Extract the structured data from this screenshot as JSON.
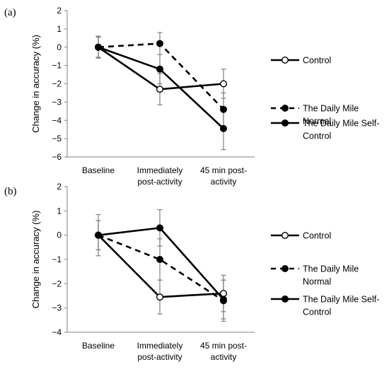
{
  "chart_data": [
    {
      "type": "line",
      "panel_label": "(a)",
      "categories": [
        "Baseline",
        "Immediately post-activity",
        "45 min post-activity"
      ],
      "category_lines": [
        [
          "Baseline"
        ],
        [
          "Immediately",
          "post-activity"
        ],
        [
          "45 min post-",
          "activity"
        ]
      ],
      "ylabel": "Change in accuracy (%)",
      "ylim": [
        -6,
        2
      ],
      "yticks": [
        2,
        1,
        0,
        -1,
        -2,
        -3,
        -4,
        -5,
        -6
      ],
      "series": [
        {
          "name": "Control",
          "values": [
            0,
            -2.3,
            -2.0
          ],
          "errors": [
            0.6,
            0.85,
            0.8
          ],
          "marker": "open",
          "dash": "solid"
        },
        {
          "name": "The Daily Mile Normal",
          "values": [
            0,
            0.2,
            -3.4
          ],
          "errors": [
            0.55,
            0.6,
            0.9
          ],
          "marker": "filled",
          "dash": "dashed"
        },
        {
          "name": "The Daily Mile Self-Control",
          "values": [
            0,
            -1.2,
            -4.45
          ],
          "errors": [
            0.6,
            0.8,
            1.15
          ],
          "marker": "filled",
          "dash": "solid"
        }
      ]
    },
    {
      "type": "line",
      "panel_label": "(b)",
      "categories": [
        "Baseline",
        "Immediately post-activity",
        "45 min post-activity"
      ],
      "category_lines": [
        [
          "Baseline"
        ],
        [
          "Immediately",
          "post-activity"
        ],
        [
          "45 min post-",
          "activity"
        ]
      ],
      "ylabel": "Change in accuracy (%)",
      "ylim": [
        -4,
        2
      ],
      "yticks": [
        2,
        1,
        0,
        -1,
        -2,
        -3,
        -4
      ],
      "series": [
        {
          "name": "Control",
          "values": [
            0,
            -2.55,
            -2.4
          ],
          "errors": [
            0.6,
            0.7,
            0.75
          ],
          "marker": "open",
          "dash": "solid"
        },
        {
          "name": "The Daily Mile Normal",
          "values": [
            0,
            -1.0,
            -2.7
          ],
          "errors": [
            0.6,
            0.85,
            0.85
          ],
          "marker": "filled",
          "dash": "dashed"
        },
        {
          "name": "The Daily Mile Self-Control",
          "values": [
            0,
            0.3,
            -2.65
          ],
          "errors": [
            0.85,
            0.75,
            0.8
          ],
          "marker": "filled",
          "dash": "solid"
        }
      ]
    }
  ],
  "legend": [
    {
      "lines": [
        "Control"
      ]
    },
    {
      "lines": [
        "The Daily Mile",
        "Normal"
      ]
    },
    {
      "lines": [
        "The Daily Mile Self-",
        "Control"
      ]
    }
  ],
  "colors": {
    "line": "#000000",
    "errorbar": "#808080",
    "axis": "#808080"
  }
}
